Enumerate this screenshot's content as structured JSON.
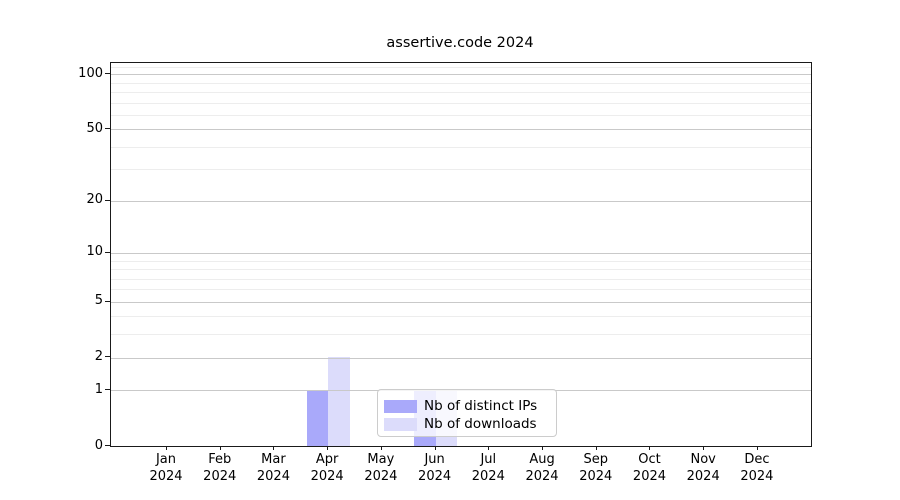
{
  "chart_data": {
    "type": "bar",
    "title": "assertive.code 2024",
    "x": {
      "categories": [
        "Jan",
        "Feb",
        "Mar",
        "Apr",
        "May",
        "Jun",
        "Jul",
        "Aug",
        "Sep",
        "Oct",
        "Nov",
        "Dec"
      ],
      "year_label": "2024"
    },
    "series": [
      {
        "name": "Nb of distinct IPs",
        "color": "#a9a9fa",
        "values": [
          0,
          0,
          0,
          1,
          0,
          1,
          0,
          0,
          0,
          0,
          0,
          0
        ]
      },
      {
        "name": "Nb of downloads",
        "color": "#dcdcfb",
        "values": [
          0,
          0,
          0,
          2,
          0,
          1,
          0,
          0,
          0,
          0,
          0,
          0
        ]
      }
    ],
    "yaxis": {
      "scale": "log1p",
      "ticks": [
        0,
        1,
        2,
        5,
        10,
        20,
        50,
        100
      ],
      "minor_ticks": [
        3,
        4,
        6,
        7,
        8,
        9,
        30,
        40,
        60,
        70,
        80,
        90,
        110
      ],
      "max": 115
    },
    "legend": {
      "entries": [
        "Nb of distinct IPs",
        "Nb of downloads"
      ],
      "position": "lower-center"
    },
    "grid": {
      "major_color": "#c9c9c9",
      "minor_color": "#ededed"
    }
  }
}
